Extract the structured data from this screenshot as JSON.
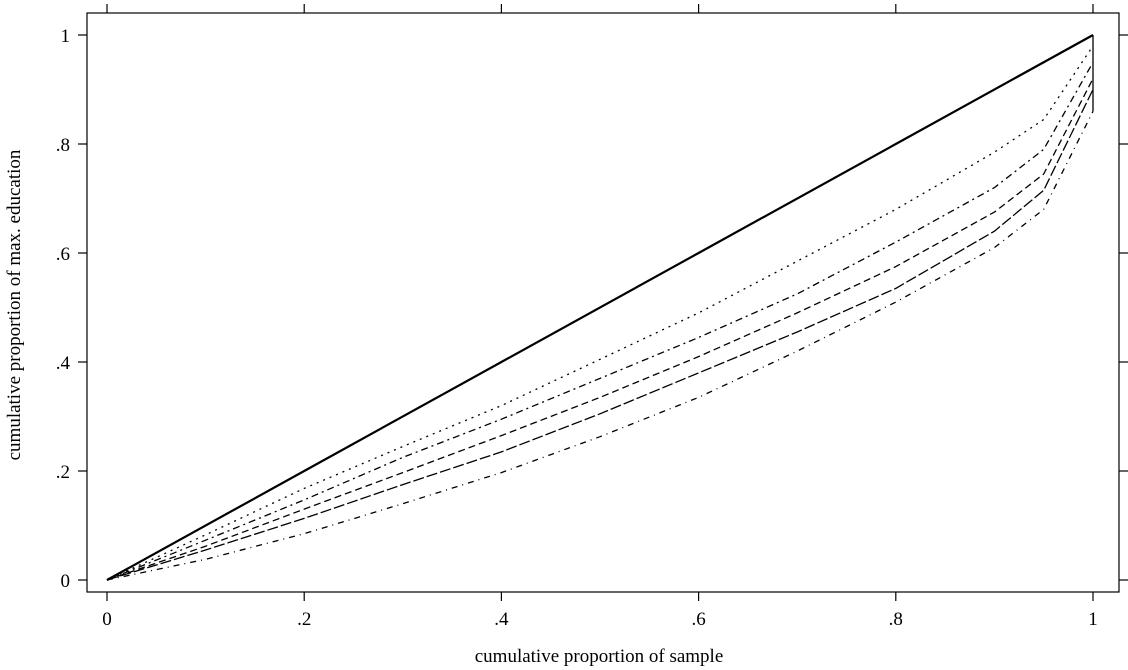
{
  "chart_data": {
    "type": "line",
    "title": "",
    "xlabel": "cumulative proportion of sample",
    "ylabel": "cumulative proportion of max. education",
    "xlim": [
      0,
      1
    ],
    "ylim": [
      0,
      1
    ],
    "grid": false,
    "legend": "none",
    "x_ticks": [
      {
        "value": 0,
        "label": "0"
      },
      {
        "value": 0.2,
        "label": ".2"
      },
      {
        "value": 0.4,
        "label": ".4"
      },
      {
        "value": 0.6,
        "label": ".6"
      },
      {
        "value": 0.8,
        "label": ".8"
      },
      {
        "value": 1,
        "label": "1"
      }
    ],
    "y_ticks": [
      {
        "value": 0,
        "label": "0"
      },
      {
        "value": 0.2,
        "label": ".2"
      },
      {
        "value": 0.4,
        "label": ".4"
      },
      {
        "value": 0.6,
        "label": ".6"
      },
      {
        "value": 0.8,
        "label": ".8"
      },
      {
        "value": 1,
        "label": "1"
      }
    ],
    "series": [
      {
        "line_style": "solid",
        "x": [
          0,
          0.2,
          0.4,
          0.6,
          0.8,
          1
        ],
        "y": [
          0,
          0.2,
          0.4,
          0.6,
          0.8,
          1
        ]
      },
      {
        "line_style": "dotted",
        "x": [
          0,
          0.1,
          0.2,
          0.3,
          0.4,
          0.5,
          0.6,
          0.7,
          0.8,
          0.9,
          0.95,
          1
        ],
        "y": [
          0,
          0.083,
          0.168,
          0.245,
          0.32,
          0.405,
          0.49,
          0.585,
          0.68,
          0.785,
          0.845,
          0.98
        ]
      },
      {
        "line_style": "dash-dot",
        "x": [
          0,
          0.1,
          0.2,
          0.3,
          0.4,
          0.5,
          0.6,
          0.7,
          0.8,
          0.9,
          0.95,
          1
        ],
        "y": [
          0,
          0.073,
          0.147,
          0.225,
          0.295,
          0.37,
          0.445,
          0.525,
          0.62,
          0.72,
          0.79,
          0.95
        ]
      },
      {
        "line_style": "dashed",
        "x": [
          0,
          0.1,
          0.2,
          0.3,
          0.4,
          0.5,
          0.6,
          0.7,
          0.8,
          0.9,
          0.95,
          1
        ],
        "y": [
          0,
          0.062,
          0.13,
          0.197,
          0.265,
          0.335,
          0.41,
          0.49,
          0.575,
          0.675,
          0.745,
          0.92
        ]
      },
      {
        "line_style": "long-dash",
        "x": [
          0,
          0.1,
          0.2,
          0.3,
          0.4,
          0.5,
          0.6,
          0.7,
          0.8,
          0.9,
          0.95,
          1
        ],
        "y": [
          0,
          0.055,
          0.113,
          0.175,
          0.235,
          0.305,
          0.38,
          0.455,
          0.535,
          0.64,
          0.715,
          0.9
        ]
      },
      {
        "line_style": "dash-dot-sparse",
        "x": [
          0,
          0.1,
          0.2,
          0.3,
          0.4,
          0.5,
          0.6,
          0.7,
          0.8,
          0.9,
          0.95,
          1
        ],
        "y": [
          0,
          0.038,
          0.085,
          0.14,
          0.197,
          0.263,
          0.335,
          0.42,
          0.51,
          0.61,
          0.68,
          0.86
        ]
      }
    ]
  }
}
